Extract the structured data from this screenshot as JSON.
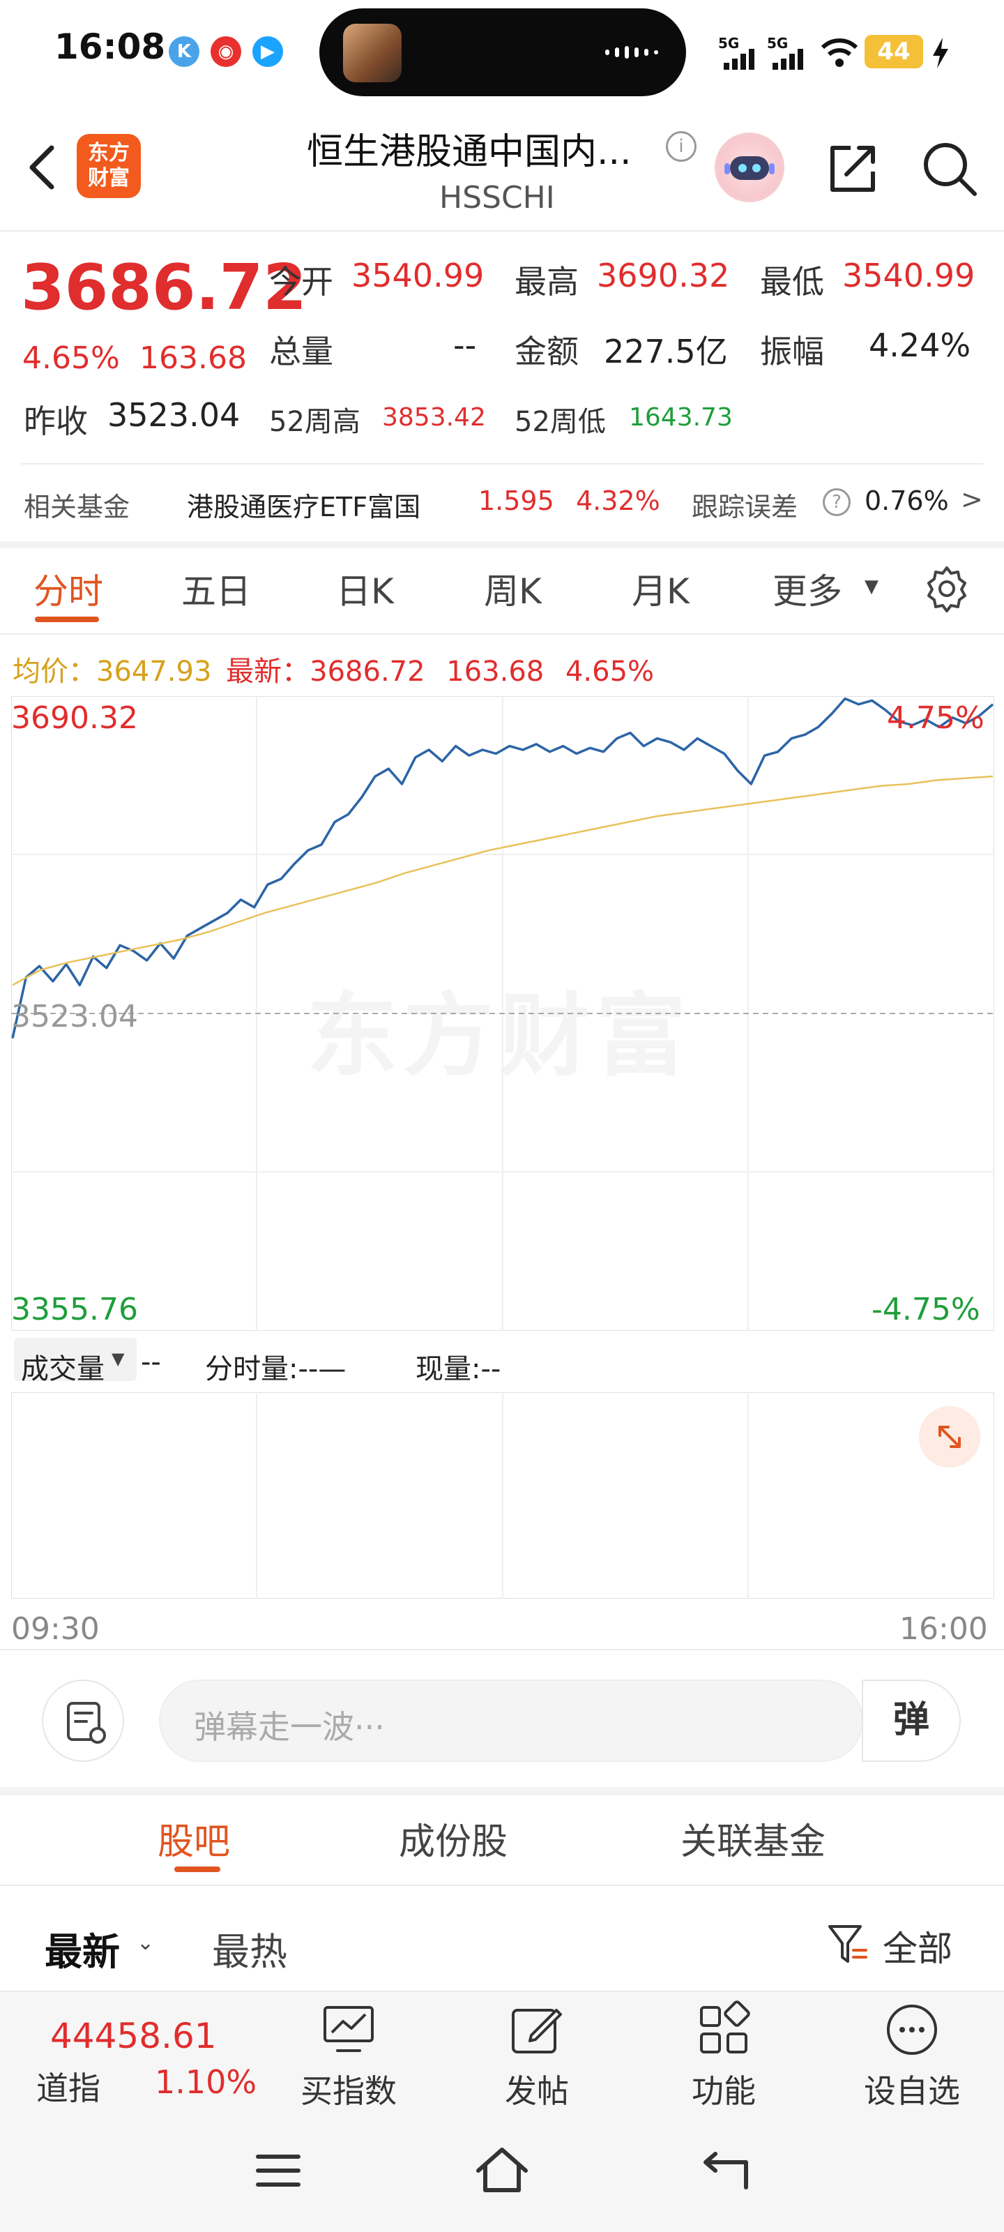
{
  "status_bar": {
    "time": "16:08",
    "signal_1": "5G",
    "signal_2": "5G",
    "battery": "44"
  },
  "header": {
    "logo_line1": "东方",
    "logo_line2": "财富",
    "stock_name": "恒生港股通中国内...",
    "stock_code": "HSSCHI",
    "info_glyph": "i"
  },
  "quote": {
    "price": "3686.72",
    "change_pct": "4.65%",
    "change_amt": "163.68",
    "prev_close_label": "昨收",
    "prev_close": "3523.04",
    "open_label": "今开",
    "open": "3540.99",
    "high_label": "最高",
    "high": "3690.32",
    "low_label": "最低",
    "low": "3540.99",
    "volume_label": "总量",
    "volume": "--",
    "amount_label": "金额",
    "amount": "227.5亿",
    "amplitude_label": "振幅",
    "amplitude": "4.24%",
    "high52_label": "52周高",
    "high52": "3853.42",
    "low52_label": "52周低",
    "low52": "1643.73"
  },
  "related_fund": {
    "label": "相关基金",
    "name": "港股通医疗ETF富国",
    "price": "1.595",
    "pct": "4.32%",
    "tracking_label": "跟踪误差",
    "help_glyph": "?",
    "tracking_value": "0.76%",
    "chevron": ">"
  },
  "chart_tabs": [
    "分时",
    "五日",
    "日K",
    "周K",
    "月K",
    "更多"
  ],
  "info_line": {
    "avg_label": "均价：",
    "avg": "3647.93",
    "latest_label": "最新：",
    "latest": "3686.72",
    "change": "163.68",
    "pct": "4.65%"
  },
  "chart_labels": {
    "top_price": "3690.32",
    "top_pct": "4.75%",
    "mid_price": "3523.04",
    "bottom_price": "3355.76",
    "bottom_pct": "-4.75%",
    "watermark": "东方财富",
    "time_start": "09:30",
    "time_end": "16:00"
  },
  "chart_data": {
    "type": "line",
    "ylim": [
      3355.76,
      3690.32
    ],
    "reference": 3523.04,
    "x_range": [
      "09:30",
      "16:00"
    ],
    "series": [
      {
        "color": "#2c64a6",
        "values": [
          3510,
          3542,
          3548,
          3540,
          3549,
          3538,
          3553,
          3547,
          3559,
          3556,
          3551,
          3560,
          3552,
          3564,
          3568,
          3572,
          3576,
          3583,
          3579,
          3591,
          3594,
          3602,
          3609,
          3612,
          3624,
          3628,
          3637,
          3648,
          3652,
          3644,
          3658,
          3662,
          3656,
          3664,
          3659,
          3662,
          3660,
          3664,
          3662,
          3665,
          3661,
          3664,
          3660,
          3663,
          3661,
          3668,
          3671,
          3664,
          3668,
          3666,
          3662,
          3668,
          3664,
          3660,
          3651,
          3644,
          3659,
          3661,
          3668,
          3670,
          3674,
          3681,
          3689,
          3686,
          3688,
          3683,
          3677,
          3675,
          3678,
          3674,
          3679,
          3676,
          3680,
          3686
        ]
      },
      {
        "color": "#e8c15a",
        "values": [
          3538,
          3546,
          3550,
          3553,
          3556,
          3559,
          3562,
          3566,
          3571,
          3576,
          3580,
          3584,
          3588,
          3592,
          3597,
          3601,
          3605,
          3609,
          3612,
          3615,
          3618,
          3621,
          3624,
          3627,
          3629,
          3631,
          3633,
          3635,
          3637,
          3639,
          3641,
          3643,
          3644,
          3646,
          3647,
          3648
        ]
      }
    ]
  },
  "volume": {
    "selector": "成交量",
    "value": "--",
    "minute_label": "分时量:--—",
    "now_label": "现量:--"
  },
  "danmaku": {
    "placeholder": "弹幕走一波···",
    "toggle": "弹"
  },
  "community_tabs": [
    "股吧",
    "成份股",
    "关联基金"
  ],
  "sort": {
    "latest": "最新",
    "hot": "最热",
    "filter": "全部"
  },
  "bottom_nav": {
    "dji_value": "44458.61",
    "dji_label": "道指",
    "dji_pct": "1.10%",
    "items": [
      "买指数",
      "发帖",
      "功能",
      "设自选"
    ]
  },
  "colors": {
    "up": "#e02d2d",
    "down": "#1e9e3a",
    "accent": "#e0551f",
    "price_line": "#2c64a6",
    "avg_line": "#e8c15a"
  }
}
